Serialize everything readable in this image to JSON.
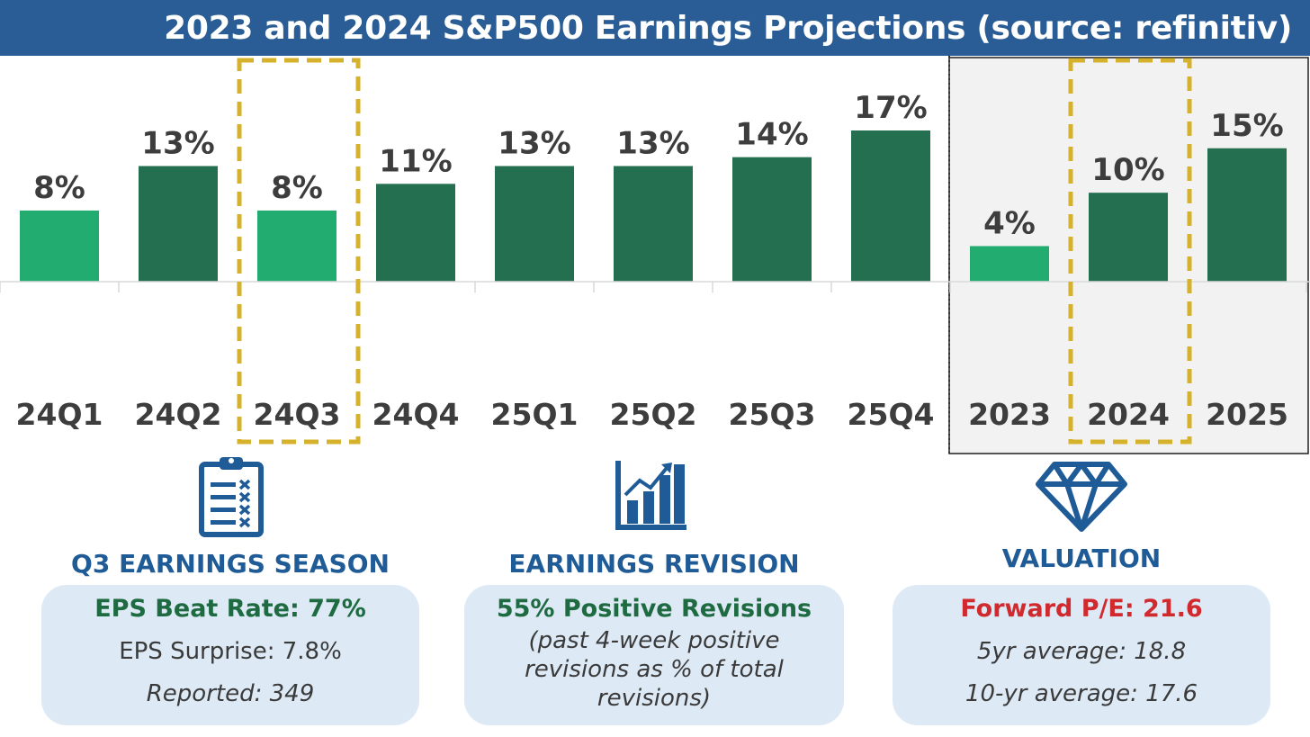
{
  "title": "2023 and 2024 S&P500 Earnings Projections (source: refinitiv)",
  "colors": {
    "title_bg": "#2a5d95",
    "bar_light": "#22ac70",
    "bar_dark": "#236f50",
    "highlight": "#d6b22c",
    "annual_panel": "#f2f2f2",
    "headline_green": "#1e6b42",
    "headline_red": "#d02a2f",
    "section_blue": "#1f5b97"
  },
  "chart_data": {
    "type": "bar",
    "categories": [
      "24Q1",
      "24Q2",
      "24Q3",
      "24Q4",
      "25Q1",
      "25Q2",
      "25Q3",
      "25Q4",
      "2023",
      "2024",
      "2025"
    ],
    "values": [
      8,
      13,
      8,
      11,
      13,
      13,
      14,
      17,
      4,
      10,
      15
    ],
    "value_labels": [
      "8%",
      "13%",
      "8%",
      "11%",
      "13%",
      "13%",
      "14%",
      "17%",
      "4%",
      "10%",
      "15%"
    ],
    "bar_shade": [
      "light",
      "dark",
      "light",
      "dark",
      "dark",
      "dark",
      "dark",
      "dark",
      "light",
      "dark",
      "dark"
    ],
    "highlighted": [
      "24Q3",
      "2024"
    ],
    "annual_group": [
      "2023",
      "2024",
      "2025"
    ],
    "unit": "%",
    "ylim": [
      0,
      17
    ]
  },
  "sections": [
    {
      "icon": "clipboard-checklist-icon",
      "title": "Q3 EARNINGS SEASON",
      "headline": "EPS Beat Rate: 77%",
      "line1": "EPS Surprise: 7.8%",
      "line2": "Reported: 349"
    },
    {
      "icon": "growth-chart-icon",
      "title": "EARNINGS REVISION",
      "headline": "55% Positive Revisions",
      "line1": "(past 4-week positive",
      "line2": "revisions as % of total",
      "line3": "revisions)"
    },
    {
      "icon": "diamond-icon",
      "title": "VALUATION",
      "headline": "Forward P/E: 21.6",
      "line1": "5yr average: 18.8",
      "line2": "10-yr average: 17.6"
    }
  ]
}
